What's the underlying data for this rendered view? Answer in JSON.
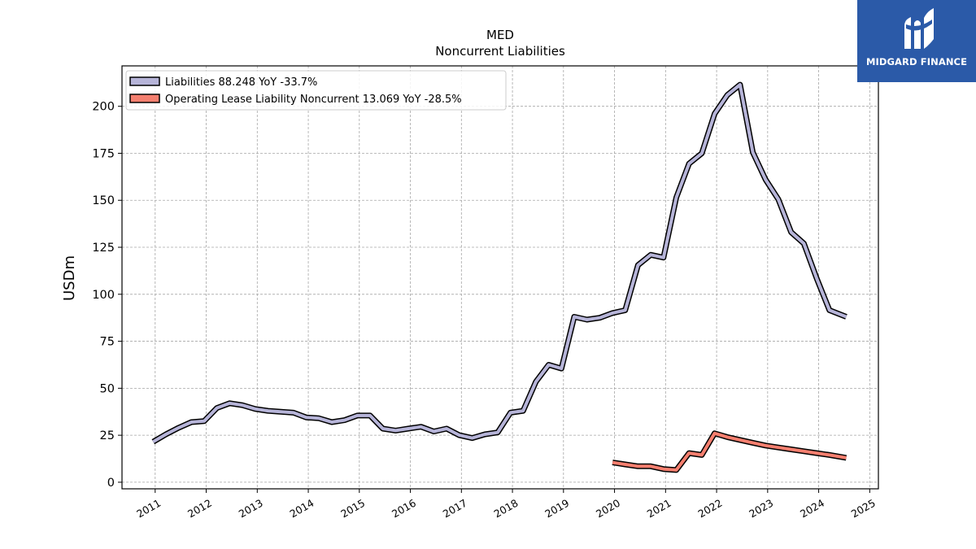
{
  "chart_data": {
    "type": "line",
    "title": "MED",
    "subtitle": "Noncurrent  Liabilities",
    "xlabel": "",
    "ylabel": "USDm",
    "xlim": [
      2010.35,
      2025.17
    ],
    "ylim": [
      -3.5,
      221.5
    ],
    "y_ticks": [
      0,
      25,
      50,
      75,
      100,
      125,
      150,
      175,
      200
    ],
    "x_ticks": [
      "2011",
      "2012",
      "2013",
      "2014",
      "2015",
      "2016",
      "2017",
      "2018",
      "2019",
      "2020",
      "2021",
      "2022",
      "2023",
      "2024",
      "2025"
    ],
    "grid": true,
    "legend_position": "top-left",
    "series": [
      {
        "name": "Liabilities  88.248 YoY -33.7%",
        "color": "#b6b4d8",
        "points": [
          [
            2010.96,
            21.5
          ],
          [
            2011.21,
            25.5
          ],
          [
            2011.46,
            29.0
          ],
          [
            2011.71,
            32.0
          ],
          [
            2011.96,
            32.5
          ],
          [
            2012.21,
            39.5
          ],
          [
            2012.46,
            42.0
          ],
          [
            2012.71,
            41.0
          ],
          [
            2012.96,
            39.0
          ],
          [
            2013.21,
            38.0
          ],
          [
            2013.46,
            37.5
          ],
          [
            2013.71,
            37.0
          ],
          [
            2013.96,
            34.5
          ],
          [
            2014.21,
            34.0
          ],
          [
            2014.46,
            32.0
          ],
          [
            2014.71,
            33.0
          ],
          [
            2014.96,
            35.5
          ],
          [
            2015.21,
            35.5
          ],
          [
            2015.46,
            28.5
          ],
          [
            2015.71,
            27.5
          ],
          [
            2015.96,
            28.5
          ],
          [
            2016.21,
            29.5
          ],
          [
            2016.46,
            27.0
          ],
          [
            2016.71,
            28.5
          ],
          [
            2016.96,
            25.0
          ],
          [
            2017.21,
            23.5
          ],
          [
            2017.46,
            25.5
          ],
          [
            2017.71,
            26.5
          ],
          [
            2017.96,
            37.0
          ],
          [
            2018.21,
            38.0
          ],
          [
            2018.46,
            53.5
          ],
          [
            2018.71,
            62.5
          ],
          [
            2018.96,
            60.5
          ],
          [
            2019.21,
            88.0
          ],
          [
            2019.46,
            86.5
          ],
          [
            2019.71,
            87.5
          ],
          [
            2019.96,
            90.0
          ],
          [
            2020.21,
            91.5
          ],
          [
            2020.46,
            115.5
          ],
          [
            2020.71,
            121.0
          ],
          [
            2020.96,
            119.5
          ],
          [
            2021.21,
            151.5
          ],
          [
            2021.46,
            169.5
          ],
          [
            2021.71,
            175.0
          ],
          [
            2021.96,
            196.0
          ],
          [
            2022.21,
            206.0
          ],
          [
            2022.46,
            211.5
          ],
          [
            2022.71,
            175.5
          ],
          [
            2022.96,
            161.0
          ],
          [
            2023.21,
            150.5
          ],
          [
            2023.46,
            133.0
          ],
          [
            2023.71,
            127.0
          ],
          [
            2023.96,
            108.5
          ],
          [
            2024.21,
            91.5
          ],
          [
            2024.54,
            88.0
          ]
        ]
      },
      {
        "name": "Operating Lease Liability Noncurrent  13.069 YoY -28.5%",
        "color": "#f47f6f",
        "points": [
          [
            2019.96,
            10.5
          ],
          [
            2020.21,
            9.5
          ],
          [
            2020.46,
            8.5
          ],
          [
            2020.71,
            8.5
          ],
          [
            2020.96,
            7.0
          ],
          [
            2021.21,
            6.5
          ],
          [
            2021.46,
            15.5
          ],
          [
            2021.71,
            14.5
          ],
          [
            2021.96,
            26.0
          ],
          [
            2022.21,
            24.0
          ],
          [
            2022.46,
            22.5
          ],
          [
            2022.71,
            21.0
          ],
          [
            2022.96,
            19.5
          ],
          [
            2023.21,
            18.5
          ],
          [
            2023.46,
            17.5
          ],
          [
            2023.71,
            16.5
          ],
          [
            2023.96,
            15.5
          ],
          [
            2024.21,
            14.5
          ],
          [
            2024.54,
            13.0
          ]
        ]
      }
    ]
  },
  "logo": {
    "text": "MIDGARD FINANCE",
    "background": "#2b5aa8"
  }
}
